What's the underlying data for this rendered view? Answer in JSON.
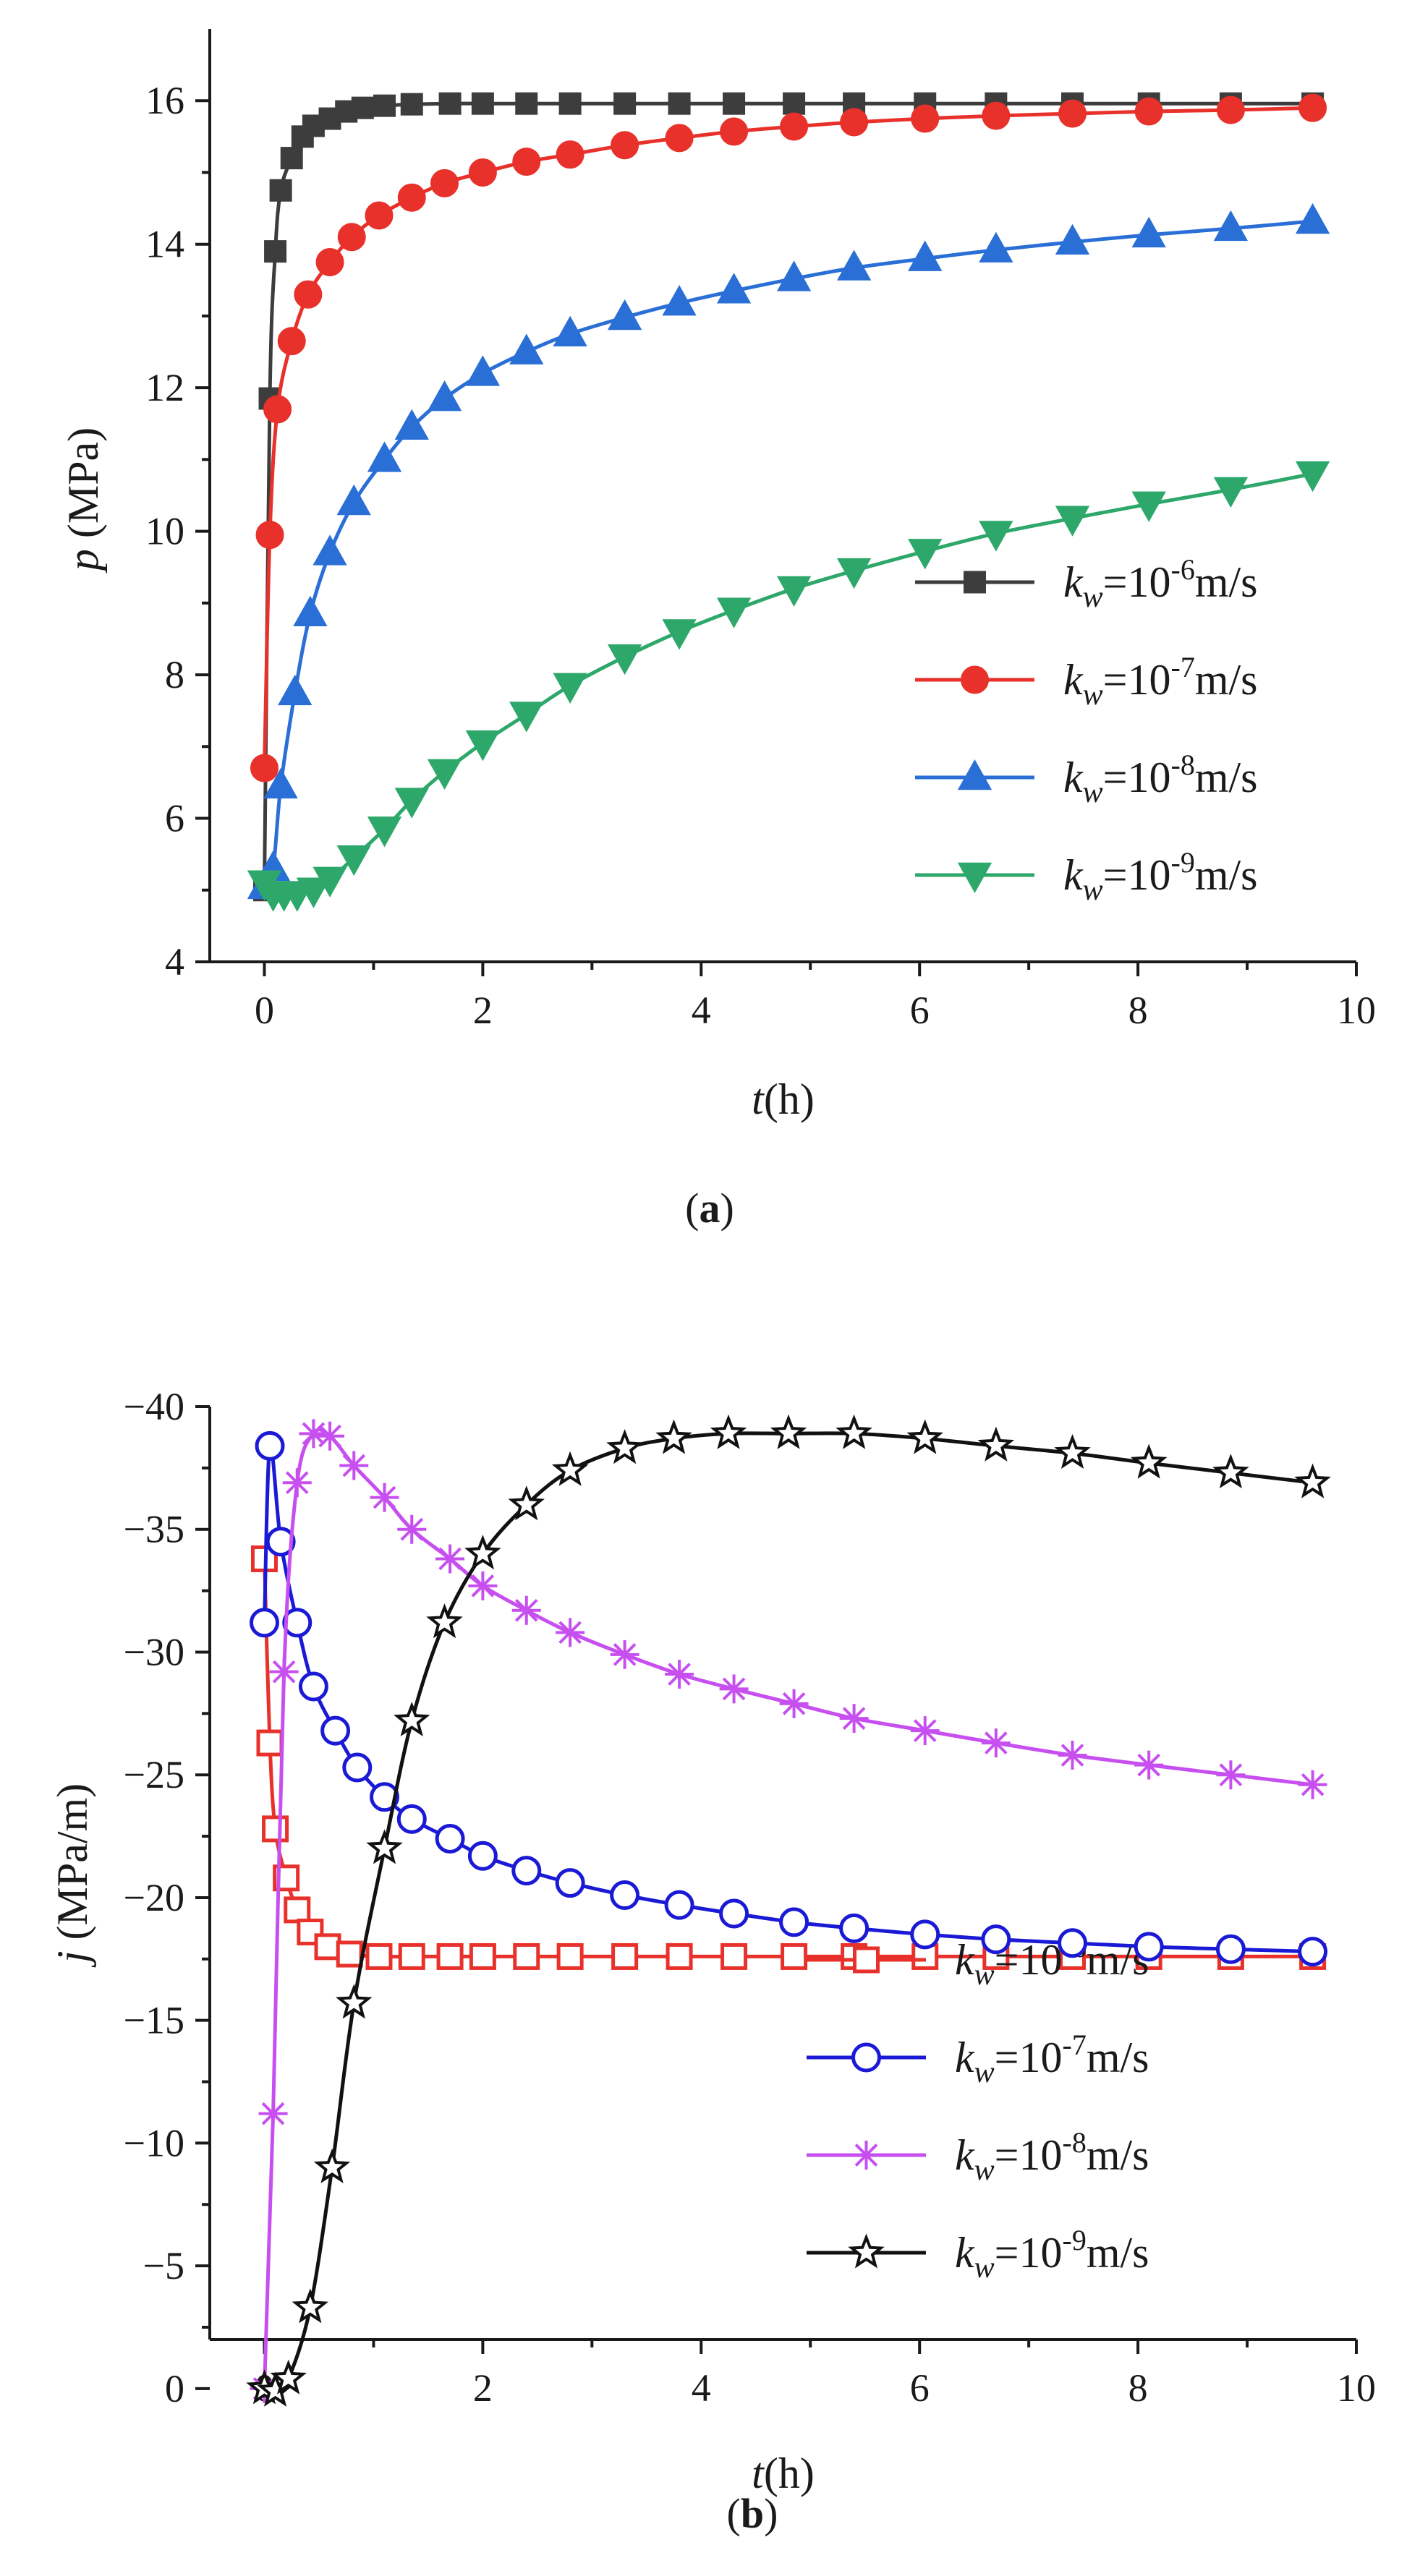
{
  "panels": {
    "a": {
      "label_open": "(",
      "label_letter": "a",
      "label_close": ")"
    },
    "b": {
      "label_open": "(",
      "label_letter": "b",
      "label_close": ")"
    }
  },
  "chart_data": [
    {
      "type": "line",
      "id": "a",
      "title": "",
      "xlabel": {
        "var": "t",
        "unit": "(h)"
      },
      "ylabel": {
        "var": "p",
        "unit": " (MPa)"
      },
      "xlim": [
        -0.5,
        10
      ],
      "ylim": [
        4,
        17
      ],
      "xticks": [
        0,
        2,
        4,
        6,
        8,
        10
      ],
      "yticks": [
        4,
        6,
        8,
        10,
        12,
        14,
        16
      ],
      "xtick_labels": [
        "0",
        "2",
        "4",
        "6",
        "8",
        "10"
      ],
      "ytick_labels": [
        "4",
        "6",
        "8",
        "10",
        "12",
        "14",
        "16"
      ],
      "grid": false,
      "legend_position": "right",
      "series": [
        {
          "name": "kw=10-6m/s",
          "legend": {
            "k": "k",
            "sub": "w",
            "pre": "=10",
            "exp": "-6",
            "unit": "m/s"
          },
          "color": "#3d3d3d",
          "marker": "square",
          "filled": true,
          "x": [
            0,
            0.05,
            0.1,
            0.15,
            0.25,
            0.35,
            0.45,
            0.6,
            0.75,
            0.9,
            1.1,
            1.35,
            1.7,
            2.0,
            2.4,
            2.8,
            3.3,
            3.8,
            4.3,
            4.85,
            5.4,
            6.05,
            6.7,
            7.4,
            8.1,
            8.85,
            9.6
          ],
          "y": [
            5.0,
            11.85,
            13.9,
            14.75,
            15.2,
            15.5,
            15.65,
            15.75,
            15.85,
            15.9,
            15.93,
            15.95,
            15.96,
            15.96,
            15.96,
            15.96,
            15.96,
            15.96,
            15.96,
            15.96,
            15.96,
            15.96,
            15.96,
            15.96,
            15.96,
            15.96,
            15.96
          ]
        },
        {
          "name": "kw=10-7m/s",
          "legend": {
            "k": "k",
            "sub": "w",
            "pre": "=10",
            "exp": "-7",
            "unit": "m/s"
          },
          "color": "#e8312a",
          "marker": "circle",
          "filled": true,
          "x": [
            0,
            0.05,
            0.12,
            0.25,
            0.4,
            0.6,
            0.8,
            1.05,
            1.35,
            1.65,
            2.0,
            2.4,
            2.8,
            3.3,
            3.8,
            4.3,
            4.85,
            5.4,
            6.05,
            6.7,
            7.4,
            8.1,
            8.85,
            9.6
          ],
          "y": [
            6.7,
            9.95,
            11.7,
            12.65,
            13.3,
            13.75,
            14.1,
            14.4,
            14.65,
            14.85,
            15.0,
            15.15,
            15.25,
            15.38,
            15.48,
            15.57,
            15.64,
            15.7,
            15.75,
            15.79,
            15.82,
            15.85,
            15.87,
            15.9
          ]
        },
        {
          "name": "kw=10-8m/s",
          "legend": {
            "k": "k",
            "sub": "w",
            "pre": "=10",
            "exp": "-8",
            "unit": "m/s"
          },
          "color": "#2a6fd6",
          "marker": "triangle-up",
          "filled": true,
          "x": [
            0,
            0.08,
            0.15,
            0.28,
            0.42,
            0.6,
            0.82,
            1.1,
            1.35,
            1.65,
            2.0,
            2.4,
            2.8,
            3.3,
            3.8,
            4.3,
            4.85,
            5.4,
            6.05,
            6.7,
            7.4,
            8.1,
            8.85,
            9.6
          ],
          "y": [
            5.05,
            5.3,
            6.45,
            7.75,
            8.85,
            9.7,
            10.4,
            11.0,
            11.45,
            11.85,
            12.2,
            12.5,
            12.75,
            12.98,
            13.18,
            13.35,
            13.52,
            13.67,
            13.8,
            13.92,
            14.03,
            14.13,
            14.22,
            14.32
          ]
        },
        {
          "name": "kw=10-9m/s",
          "legend": {
            "k": "k",
            "sub": "w",
            "pre": "=10",
            "exp": "-9",
            "unit": "m/s"
          },
          "color": "#2da86a",
          "marker": "triangle-down",
          "filled": true,
          "x": [
            0,
            0.08,
            0.18,
            0.3,
            0.45,
            0.6,
            0.82,
            1.1,
            1.35,
            1.65,
            2.0,
            2.4,
            2.8,
            3.3,
            3.8,
            4.3,
            4.85,
            5.4,
            6.05,
            6.7,
            7.4,
            8.1,
            8.85,
            9.6
          ],
          "y": [
            5.1,
            4.95,
            4.95,
            4.95,
            5.0,
            5.15,
            5.45,
            5.85,
            6.25,
            6.65,
            7.05,
            7.45,
            7.85,
            8.25,
            8.6,
            8.9,
            9.2,
            9.45,
            9.72,
            9.97,
            10.18,
            10.38,
            10.58,
            10.8
          ]
        }
      ]
    },
    {
      "type": "line",
      "id": "b",
      "title": "",
      "xlabel": {
        "var": "t",
        "unit": "(h)"
      },
      "ylabel": {
        "var": "j",
        "unit": " (MPa/m)"
      },
      "xlim": [
        -0.5,
        10
      ],
      "ylim": [
        -2,
        -40
      ],
      "y_axis_inverted": true,
      "xticks": [
        0,
        2,
        4,
        6,
        8,
        10
      ],
      "yticks": [
        0,
        -5,
        -10,
        -15,
        -20,
        -25,
        -30,
        -35,
        -40
      ],
      "xtick_labels": [
        "0",
        "2",
        "4",
        "6",
        "8",
        "10"
      ],
      "ytick_labels": [
        "0",
        "−5",
        "−10",
        "−15",
        "−20",
        "−25",
        "−30",
        "−35",
        "−40"
      ],
      "grid": false,
      "legend_position": "lower right",
      "series": [
        {
          "name": "kw=10-6m/s",
          "legend": {
            "k": "k",
            "sub": "w",
            "pre": "=10",
            "exp": "-6",
            "unit": "m/s"
          },
          "color": "#e8312a",
          "marker": "square",
          "filled": false,
          "x": [
            0,
            0.05,
            0.1,
            0.2,
            0.3,
            0.42,
            0.58,
            0.78,
            1.05,
            1.35,
            1.7,
            2.0,
            2.4,
            2.8,
            3.3,
            3.8,
            4.3,
            4.85,
            5.4,
            6.05,
            6.7,
            7.4,
            8.1,
            8.85,
            9.6
          ],
          "y": [
            -33.8,
            -26.3,
            -22.8,
            -20.8,
            -19.5,
            -18.6,
            -18.0,
            -17.7,
            -17.6,
            -17.6,
            -17.6,
            -17.6,
            -17.6,
            -17.6,
            -17.6,
            -17.6,
            -17.6,
            -17.6,
            -17.6,
            -17.6,
            -17.6,
            -17.6,
            -17.6,
            -17.6,
            -17.6
          ]
        },
        {
          "name": "kw=10-7m/s",
          "legend": {
            "k": "k",
            "sub": "w",
            "pre": "=10",
            "exp": "-7",
            "unit": "m/s"
          },
          "color": "#1a1ad6",
          "marker": "circle",
          "filled": false,
          "x": [
            0,
            0.05,
            0.15,
            0.3,
            0.45,
            0.65,
            0.85,
            1.1,
            1.35,
            1.7,
            2.0,
            2.4,
            2.8,
            3.3,
            3.8,
            4.3,
            4.85,
            5.4,
            6.05,
            6.7,
            7.4,
            8.1,
            8.85,
            9.6
          ],
          "y": [
            -31.2,
            -38.4,
            -34.5,
            -31.2,
            -28.6,
            -26.8,
            -25.3,
            -24.1,
            -23.2,
            -22.4,
            -21.7,
            -21.1,
            -20.6,
            -20.1,
            -19.7,
            -19.35,
            -19.0,
            -18.75,
            -18.5,
            -18.3,
            -18.15,
            -18.0,
            -17.9,
            -17.8
          ]
        },
        {
          "name": "kw=10-8m/s",
          "legend": {
            "k": "k",
            "sub": "w",
            "pre": "=10",
            "exp": "-8",
            "unit": "m/s"
          },
          "color": "#c74ff0",
          "marker": "asterisk",
          "filled": false,
          "x": [
            0,
            0.08,
            0.18,
            0.3,
            0.45,
            0.6,
            0.82,
            1.1,
            1.35,
            1.7,
            2.0,
            2.4,
            2.8,
            3.3,
            3.8,
            4.3,
            4.85,
            5.4,
            6.05,
            6.7,
            7.4,
            8.1,
            8.85,
            9.6
          ],
          "y": [
            0,
            -11.2,
            -29.2,
            -36.9,
            -38.9,
            -38.8,
            -37.6,
            -36.3,
            -35.0,
            -33.8,
            -32.7,
            -31.7,
            -30.8,
            -29.9,
            -29.1,
            -28.5,
            -27.9,
            -27.3,
            -26.8,
            -26.3,
            -25.8,
            -25.4,
            -25.0,
            -24.6
          ]
        },
        {
          "name": "kw=10-9m/s",
          "legend": {
            "k": "k",
            "sub": "w",
            "pre": "=10",
            "exp": "-9",
            "unit": "m/s"
          },
          "color": "#111111",
          "marker": "star",
          "filled": false,
          "x": [
            0,
            0.1,
            0.22,
            0.42,
            0.62,
            0.82,
            1.1,
            1.35,
            1.65,
            2.0,
            2.4,
            2.8,
            3.3,
            3.75,
            4.25,
            4.8,
            5.4,
            6.05,
            6.7,
            7.4,
            8.1,
            8.85,
            9.6
          ],
          "y": [
            0,
            0.1,
            -0.4,
            -3.3,
            -9.0,
            -15.7,
            -22.0,
            -27.2,
            -31.2,
            -34.0,
            -36.0,
            -37.4,
            -38.3,
            -38.7,
            -38.9,
            -38.9,
            -38.9,
            -38.7,
            -38.4,
            -38.1,
            -37.7,
            -37.3,
            -36.9
          ]
        }
      ]
    }
  ]
}
